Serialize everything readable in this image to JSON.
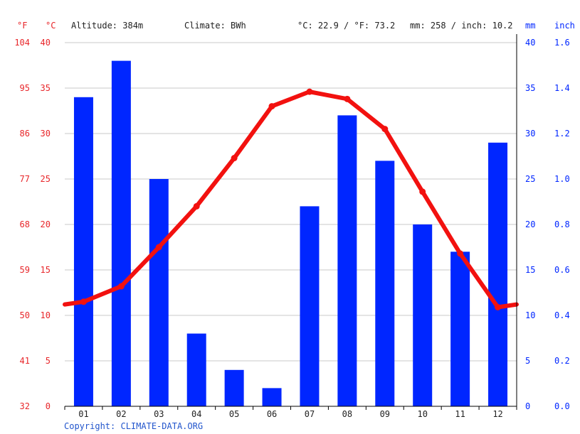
{
  "header": {
    "altitude": "Altitude: 384m",
    "climate": "Climate: BWh",
    "temp_summary": "°C: 22.9 / °F: 73.2",
    "precip_summary": "mm: 258 / inch: 10.2"
  },
  "axis_units": {
    "fahrenheit": "°F",
    "celsius": "°C",
    "mm": "mm",
    "inch": "inch"
  },
  "copyright": "Copyright: CLIMATE-DATA.ORG",
  "chart_data": {
    "type": "bar",
    "categories": [
      "01",
      "02",
      "03",
      "04",
      "05",
      "06",
      "07",
      "08",
      "09",
      "10",
      "11",
      "12"
    ],
    "series": [
      {
        "type": "bar",
        "axis": "mm",
        "values": [
          34,
          38,
          25,
          8,
          4,
          2,
          22,
          32,
          27,
          20,
          17,
          29
        ]
      },
      {
        "type": "line",
        "axis": "celsius",
        "values": [
          11.5,
          13.2,
          17.5,
          22.0,
          27.3,
          33.0,
          34.6,
          33.8,
          30.5,
          23.6,
          16.8,
          10.9
        ]
      }
    ],
    "line_edge_values": {
      "start": 11.2,
      "end": 11.2
    },
    "colors": {
      "bars": "#0026ff",
      "line": "#f2110f",
      "temp_axis": "#e8262a",
      "precip_axis": "#0026ff"
    },
    "axes": {
      "celsius": {
        "ticks": [
          "0",
          "5",
          "10",
          "15",
          "20",
          "25",
          "30",
          "35",
          "40"
        ],
        "range": [
          0,
          40
        ]
      },
      "fahrenheit": {
        "ticks": [
          "32",
          "41",
          "50",
          "59",
          "68",
          "77",
          "86",
          "95",
          "104"
        ]
      },
      "mm": {
        "ticks": [
          "0",
          "5",
          "10",
          "15",
          "20",
          "25",
          "30",
          "35",
          "40"
        ],
        "range": [
          0,
          40
        ]
      },
      "inch": {
        "ticks": [
          "0.0",
          "0.2",
          "0.4",
          "0.6",
          "0.8",
          "1.0",
          "1.2",
          "1.4",
          "1.6"
        ]
      }
    },
    "grid": true
  }
}
